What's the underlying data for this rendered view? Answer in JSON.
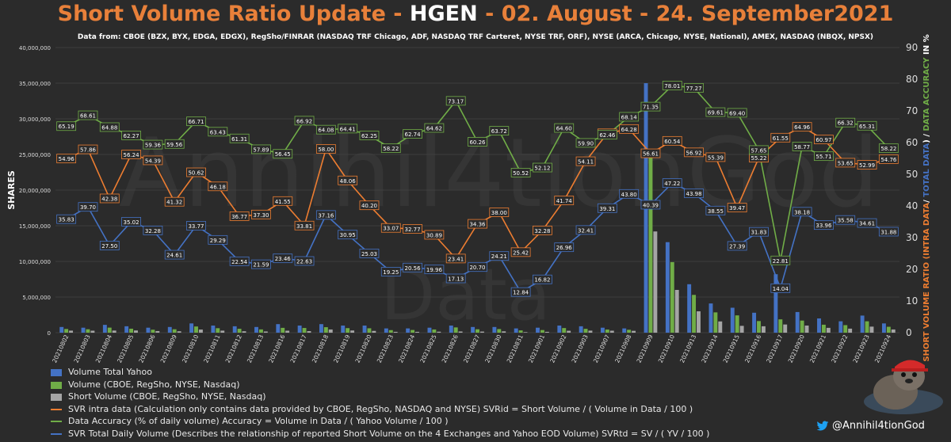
{
  "header": {
    "title_part1": "Short Volume Ratio Update - ",
    "title_ticker": "HGEN",
    "title_part2": " - 02. August - 24. September2021",
    "subtitle": "Data from: CBOE (BZX, BYX, EDGA, EDGX), RegSho/FINRAR (NASDAQ TRF Chicago, ADF, NASDAQ TRF Carteret, NYSE TRF, ORF), NYSE (ARCA, Chicago, NYSE, National), AMEX, NASDAQ (NBQX, NPSX)"
  },
  "watermark": {
    "line1": "Annihil4tionGod",
    "line2": "Data"
  },
  "credit": {
    "handle": "@Annihil4tionGod",
    "icon": "twitter-icon"
  },
  "colors": {
    "background": "#2b2b2b",
    "yahoo_volume": "#4472c4",
    "data_volume": "#70ad47",
    "short_volume": "#a5a5a5",
    "svr_intra": "#ed7d31",
    "accuracy": "#70ad47",
    "svr_total": "#4472c4",
    "title_orange": "#e8803a"
  },
  "chart_data": {
    "type": "bar",
    "title": "Short Volume Ratio Update - HGEN - 02. August - 24. September2021",
    "ylabel": "SHARES",
    "y2label_parts": [
      "SHORT VOLUME RATIO (INTRA DATA",
      "/ ",
      "TOTAL DATA",
      ") / ",
      "DATA ACCURACY",
      " IN %"
    ],
    "ylim": [
      0,
      40000000
    ],
    "y2lim": [
      0,
      90
    ],
    "yticks": [
      "0",
      "5,000,000",
      "10,000,000",
      "15,000,000",
      "20,000,000",
      "25,000,000",
      "30,000,000",
      "35,000,000",
      "40,000,000"
    ],
    "y2ticks": [
      "0",
      "10",
      "20",
      "30",
      "40",
      "50",
      "60",
      "70",
      "80",
      "90"
    ],
    "legend_position": "bottom-left",
    "categories": [
      "20210802",
      "20210803",
      "20210804",
      "20210805",
      "20210806",
      "20210809",
      "20210810",
      "20210811",
      "20210812",
      "20210813",
      "20210816",
      "20210817",
      "20210818",
      "20210819",
      "20210820",
      "20210823",
      "20210824",
      "20210825",
      "20210826",
      "20210827",
      "20210830",
      "20210831",
      "20210901",
      "20210902",
      "20210903",
      "20210907",
      "20210908",
      "20210909",
      "20210910",
      "20210913",
      "20210914",
      "20210915",
      "20210916",
      "20210917",
      "20210920",
      "20210921",
      "20210922",
      "20210923",
      "20210924"
    ],
    "bar_series": [
      {
        "name": "Volume Total Yahoo",
        "color": "#4472c4",
        "values": [
          800000,
          700000,
          1100000,
          900000,
          700000,
          800000,
          1300000,
          1000000,
          900000,
          800000,
          1200000,
          1000000,
          1200000,
          1000000,
          1000000,
          600000,
          600000,
          700000,
          1000000,
          800000,
          800000,
          600000,
          700000,
          1000000,
          900000,
          700000,
          600000,
          35000000,
          12700000,
          6800000,
          4100000,
          3500000,
          2800000,
          8200000,
          2900000,
          2000000,
          1600000,
          2400000,
          1300000
        ]
      },
      {
        "name": "Volume  (CBOE, RegSho, NYSE, Nasdaq)",
        "color": "#70ad47",
        "values": [
          520000,
          480000,
          710000,
          560000,
          420000,
          480000,
          870000,
          630000,
          550000,
          460000,
          680000,
          660000,
          770000,
          640000,
          620000,
          360000,
          380000,
          450000,
          740000,
          480000,
          510000,
          320000,
          370000,
          650000,
          540000,
          440000,
          410000,
          25000000,
          9900000,
          5300000,
          2850000,
          2430000,
          1630000,
          1870000,
          1700000,
          1120000,
          1060000,
          1600000,
          830000
        ]
      },
      {
        "name": "Short  Volume (CBOE, RegSho, NYSE, Nasdaq)",
        "color": "#a5a5a5",
        "values": [
          290000,
          280000,
          300000,
          310000,
          230000,
          200000,
          440000,
          290000,
          200000,
          170000,
          280000,
          220000,
          450000,
          310000,
          250000,
          120000,
          120000,
          140000,
          170000,
          160000,
          190000,
          80000,
          120000,
          270000,
          290000,
          280000,
          260000,
          14200000,
          6000000,
          3000000,
          1580000,
          960000,
          900000,
          1150000,
          1000000,
          680000,
          570000,
          850000,
          450000
        ]
      }
    ],
    "line_series": [
      {
        "name": "SVR intra data (Calculation only contains data provided by CBOE, RegSho, NASDAQ and NYSE) SVRid = Short Volume / ( Volume in Data / 100 )",
        "color": "#ed7d31",
        "values": [
          54.96,
          57.86,
          42.38,
          56.24,
          54.39,
          41.32,
          50.62,
          46.18,
          36.77,
          37.3,
          41.55,
          33.81,
          58.0,
          48.06,
          40.2,
          33.07,
          32.77,
          30.89,
          23.41,
          34.36,
          38.0,
          25.42,
          32.28,
          41.74,
          54.11,
          62.93,
          64.28,
          56.61,
          60.54,
          56.92,
          55.39,
          39.47,
          55.22,
          61.55,
          64.96,
          60.97,
          53.65,
          52.99,
          54.76
        ]
      },
      {
        "name": "Data Accuracy (% of daily volume) Accuracy = Volume in Data / ( Yahoo Volume / 100 )",
        "color": "#70ad47",
        "values": [
          65.19,
          68.61,
          64.88,
          62.27,
          59.36,
          59.56,
          66.71,
          63.43,
          61.31,
          57.89,
          56.45,
          66.92,
          64.08,
          64.41,
          62.25,
          58.22,
          62.74,
          64.62,
          73.17,
          60.26,
          63.72,
          50.52,
          52.12,
          64.6,
          59.9,
          62.46,
          68.14,
          71.35,
          78.01,
          77.27,
          69.61,
          69.4,
          57.65,
          22.81,
          58.77,
          55.71,
          66.32,
          65.31,
          58.22
        ]
      },
      {
        "name": "SVR Total Daily Volume (Describes the relationship of reported Short Volume on the 4 Exchanges and Yahoo EOD Volume) SVRtd = SV / ( YV / 100 )",
        "color": "#4472c4",
        "values": [
          35.83,
          39.7,
          27.5,
          35.02,
          32.28,
          24.61,
          33.77,
          29.29,
          22.54,
          21.59,
          23.46,
          22.63,
          37.16,
          30.95,
          25.03,
          19.25,
          20.56,
          19.96,
          17.13,
          20.7,
          24.21,
          12.84,
          16.82,
          26.96,
          32.41,
          39.31,
          43.8,
          40.39,
          47.22,
          43.98,
          38.55,
          27.39,
          31.83,
          14.04,
          38.18,
          33.96,
          35.58,
          34.61,
          31.88
        ]
      }
    ]
  }
}
